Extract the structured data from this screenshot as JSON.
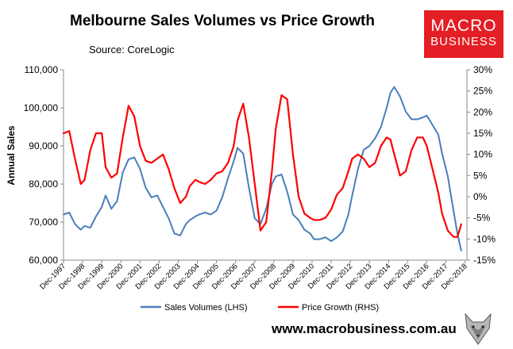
{
  "header": {
    "title": "Melbourne Sales Volumes vs Price Growth",
    "source": "Source: CoreLogic"
  },
  "logo": {
    "line1": "MACRO",
    "line2": "BUSINESS"
  },
  "footer": {
    "url": "www.macrobusiness.com.au"
  },
  "colors": {
    "sales": "#4a7ebb",
    "growth": "#ff0000",
    "brand": "#e31e24"
  },
  "icons": {
    "logo": "macrobusiness-logo",
    "wolf": "wolf-mascot-icon"
  },
  "chart_data": {
    "type": "line",
    "title": "Melbourne Sales Volumes vs Price Growth",
    "ylabel": "Annual Sales",
    "ylim_left": [
      60000,
      110000
    ],
    "ylim_right": [
      -15,
      30
    ],
    "y_ticks_left": [
      "110,000",
      "100,000",
      "90,000",
      "80,000",
      "70,000",
      "60,000"
    ],
    "y_ticks_right": [
      "30%",
      "25%",
      "20%",
      "15%",
      "10%",
      "5%",
      "0%",
      "-5%",
      "-10%",
      "-15%"
    ],
    "x_ticks": [
      "Dec-1997",
      "Dec-1998",
      "Dec-1999",
      "Dec-2000",
      "Dec-2001",
      "Dec-2002",
      "Dec-2003",
      "Dec-2004",
      "Dec-2005",
      "Dec-2006",
      "Dec-2007",
      "Dec-2008",
      "Dec-2009",
      "Dec-2010",
      "Dec-2011",
      "Dec-2012",
      "Dec-2013",
      "Dec-2014",
      "Dec-2015",
      "Dec-2016",
      "Dec-2017",
      "Dec-2018"
    ],
    "legend": [
      "Sales Volumes (LHS)",
      "Price Growth (RHS)"
    ],
    "legend_position": "bottom",
    "series": [
      {
        "name": "Sales Volumes (LHS)",
        "axis": "left",
        "color": "#4a7ebb",
        "x": [
          1997.9,
          1998.2,
          1998.5,
          1998.8,
          1999.0,
          1999.3,
          1999.6,
          1999.9,
          2000.1,
          2000.4,
          2000.7,
          2001.0,
          2001.3,
          2001.6,
          2001.9,
          2002.2,
          2002.5,
          2002.8,
          2003.1,
          2003.4,
          2003.7,
          2004.0,
          2004.3,
          2004.5,
          2004.8,
          2005.0,
          2005.3,
          2005.6,
          2005.9,
          2006.2,
          2006.5,
          2006.8,
          2007.0,
          2007.3,
          2007.6,
          2007.9,
          2008.2,
          2008.5,
          2008.8,
          2009.0,
          2009.3,
          2009.6,
          2009.9,
          2010.2,
          2010.5,
          2010.8,
          2011.0,
          2011.3,
          2011.6,
          2011.9,
          2012.2,
          2012.5,
          2012.8,
          2013.0,
          2013.3,
          2013.6,
          2013.9,
          2014.2,
          2014.5,
          2014.8,
          2015.0,
          2015.2,
          2015.5,
          2015.8,
          2016.1,
          2016.4,
          2016.7,
          2016.9,
          2017.2,
          2017.5,
          2017.7,
          2018.0,
          2018.3,
          2018.5,
          2018.7
        ],
        "values": [
          72000,
          72500,
          69500,
          68000,
          69000,
          68500,
          71500,
          74000,
          77000,
          73500,
          75500,
          83000,
          86500,
          87000,
          84000,
          79000,
          76500,
          77000,
          74000,
          71000,
          67000,
          66500,
          69500,
          70500,
          71500,
          72000,
          72500,
          72000,
          73000,
          76500,
          81500,
          86000,
          89500,
          88000,
          79000,
          71000,
          69500,
          73500,
          80000,
          82000,
          82500,
          78000,
          72000,
          70500,
          68000,
          67000,
          65500,
          65500,
          66000,
          65000,
          66000,
          67500,
          72000,
          77000,
          84000,
          89000,
          90000,
          92000,
          95000,
          100000,
          104000,
          105500,
          103000,
          99000,
          97000,
          97000,
          97500,
          98000,
          95500,
          93000,
          88000,
          82000,
          73000,
          67000,
          62500
        ]
      },
      {
        "name": "Price Growth (RHS)",
        "axis": "right",
        "color": "#ff0000",
        "x": [
          1997.9,
          1998.2,
          1998.5,
          1998.8,
          1999.0,
          1999.3,
          1999.6,
          1999.9,
          2000.1,
          2000.4,
          2000.7,
          2001.0,
          2001.3,
          2001.6,
          2001.9,
          2002.2,
          2002.5,
          2002.8,
          2003.1,
          2003.4,
          2003.7,
          2004.0,
          2004.3,
          2004.5,
          2004.8,
          2005.0,
          2005.3,
          2005.6,
          2005.9,
          2006.2,
          2006.5,
          2006.8,
          2007.0,
          2007.3,
          2007.6,
          2007.9,
          2008.2,
          2008.5,
          2008.8,
          2009.0,
          2009.3,
          2009.6,
          2009.9,
          2010.2,
          2010.5,
          2010.8,
          2011.0,
          2011.3,
          2011.6,
          2011.9,
          2012.2,
          2012.5,
          2012.8,
          2013.0,
          2013.3,
          2013.6,
          2013.9,
          2014.2,
          2014.5,
          2014.8,
          2015.0,
          2015.2,
          2015.5,
          2015.8,
          2016.1,
          2016.4,
          2016.7,
          2016.9,
          2017.2,
          2017.5,
          2017.7,
          2018.0,
          2018.3,
          2018.5,
          2018.7
        ],
        "values": [
          15.0,
          15.5,
          9.0,
          3.0,
          4.0,
          11.0,
          15.0,
          15.0,
          7.0,
          4.5,
          5.5,
          14.0,
          21.5,
          19.0,
          12.0,
          8.5,
          8.0,
          9.0,
          10.0,
          6.5,
          2.0,
          -1.5,
          0.0,
          2.5,
          4.0,
          3.5,
          3.0,
          4.0,
          5.5,
          6.0,
          8.0,
          12.0,
          18.0,
          22.0,
          14.0,
          3.0,
          -8.0,
          -6.0,
          6.0,
          16.0,
          24.0,
          23.0,
          10.0,
          0.0,
          -4.0,
          -5.0,
          -5.5,
          -5.5,
          -5.0,
          -3.0,
          0.5,
          2.0,
          6.0,
          9.0,
          10.0,
          9.0,
          7.0,
          8.0,
          12.0,
          14.0,
          13.5,
          10.0,
          5.0,
          6.0,
          11.0,
          14.0,
          14.0,
          12.0,
          6.5,
          1.0,
          -4.0,
          -8.0,
          -9.5,
          -9.5,
          -6.5
        ]
      }
    ]
  }
}
